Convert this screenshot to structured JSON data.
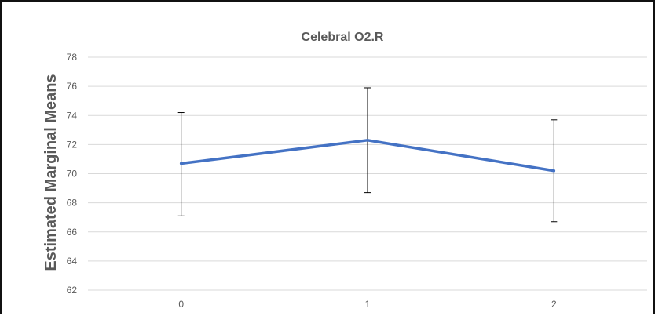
{
  "chart_data": {
    "type": "line",
    "title": "Celebral O2.R",
    "xlabel": "",
    "ylabel": "Estimated Marginal Means",
    "categories": [
      "0",
      "1",
      "2"
    ],
    "series": [
      {
        "values": [
          70.7,
          72.3,
          70.2
        ],
        "error_low": [
          67.1,
          68.7,
          66.7
        ],
        "error_high": [
          74.2,
          75.9,
          73.7
        ],
        "color": "#4472C4"
      }
    ],
    "ylim": [
      62,
      78
    ],
    "yticks": [
      "62",
      "64",
      "66",
      "68",
      "70",
      "72",
      "74",
      "76",
      "78"
    ],
    "grid": true,
    "gridColor": "#D9D9D9",
    "errorBarColor": "#000000"
  }
}
